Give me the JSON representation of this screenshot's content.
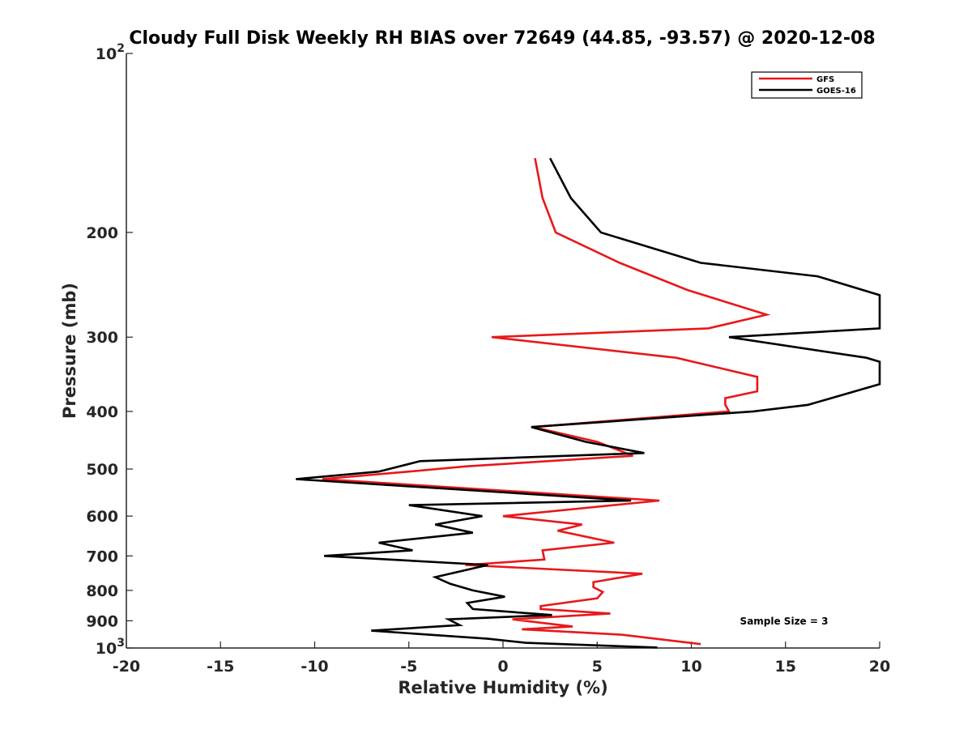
{
  "chart_data": {
    "type": "line",
    "title": "Cloudy Full Disk Weekly RH BIAS over 72649 (44.85, -93.57) @ 2020-12-08",
    "xlabel": "Relative Humidity (%)",
    "ylabel": "Pressure (mb)",
    "xlim": [
      -20,
      20
    ],
    "ylim": [
      100,
      1000
    ],
    "yscale": "log",
    "y_reversed": true,
    "grid": false,
    "legend_position": "top-right",
    "x_ticks": [
      "-20",
      "-15",
      "-10",
      "-5",
      "0",
      "5",
      "10",
      "15",
      "20"
    ],
    "y_ticks": [
      {
        "value": 100,
        "base": "10",
        "exp": "2"
      },
      {
        "value": 200,
        "label": "200"
      },
      {
        "value": 300,
        "label": "300"
      },
      {
        "value": 400,
        "label": "400"
      },
      {
        "value": 500,
        "label": "500"
      },
      {
        "value": 600,
        "label": "600"
      },
      {
        "value": 700,
        "label": "700"
      },
      {
        "value": 800,
        "label": "800"
      },
      {
        "value": 900,
        "label": "900"
      },
      {
        "value": 1000,
        "base": "10",
        "exp": "3"
      }
    ],
    "annotation": "Sample Size = 3",
    "series": [
      {
        "name": "GFS",
        "color": "#e8181a",
        "points": [
          [
            1.7,
            150
          ],
          [
            2.1,
            175
          ],
          [
            2.8,
            200
          ],
          [
            6.2,
            225
          ],
          [
            9.8,
            250
          ],
          [
            14.0,
            275
          ],
          [
            10.9,
            290
          ],
          [
            -0.6,
            300
          ],
          [
            9.2,
            325
          ],
          [
            13.5,
            350
          ],
          [
            13.5,
            370
          ],
          [
            11.8,
            380
          ],
          [
            11.8,
            390
          ],
          [
            12.0,
            400
          ],
          [
            1.6,
            425
          ],
          [
            5.0,
            450
          ],
          [
            6.9,
            475
          ],
          [
            -2.0,
            495
          ],
          [
            -5.0,
            505
          ],
          [
            -9.6,
            520
          ],
          [
            2.5,
            550
          ],
          [
            8.3,
            565
          ],
          [
            0.0,
            600
          ],
          [
            4.2,
            620
          ],
          [
            2.9,
            635
          ],
          [
            5.9,
            665
          ],
          [
            2.1,
            685
          ],
          [
            2.2,
            710
          ],
          [
            -2.0,
            725
          ],
          [
            7.4,
            750
          ],
          [
            4.8,
            775
          ],
          [
            4.8,
            790
          ],
          [
            5.3,
            805
          ],
          [
            5.0,
            825
          ],
          [
            2.0,
            850
          ],
          [
            2.0,
            860
          ],
          [
            5.7,
            875
          ],
          [
            0.5,
            895
          ],
          [
            3.7,
            920
          ],
          [
            1.0,
            930
          ],
          [
            6.3,
            950
          ],
          [
            10.5,
            985
          ]
        ]
      },
      {
        "name": "GOES-16",
        "color": "#000000",
        "points": [
          [
            2.5,
            150
          ],
          [
            3.6,
            175
          ],
          [
            5.2,
            200
          ],
          [
            10.5,
            225
          ],
          [
            16.7,
            237
          ],
          [
            20.0,
            255
          ],
          [
            20.0,
            290
          ],
          [
            12.0,
            300
          ],
          [
            19.3,
            325
          ],
          [
            20.0,
            330
          ],
          [
            20.0,
            360
          ],
          [
            16.2,
            390
          ],
          [
            13.3,
            400
          ],
          [
            1.5,
            425
          ],
          [
            4.4,
            450
          ],
          [
            7.5,
            470
          ],
          [
            -4.4,
            485
          ],
          [
            -6.6,
            505
          ],
          [
            -11.0,
            520
          ],
          [
            1.1,
            550
          ],
          [
            6.8,
            565
          ],
          [
            -5.0,
            575
          ],
          [
            -1.1,
            600
          ],
          [
            -3.6,
            620
          ],
          [
            -1.6,
            640
          ],
          [
            -6.6,
            665
          ],
          [
            -4.8,
            685
          ],
          [
            -9.5,
            700
          ],
          [
            -0.8,
            725
          ],
          [
            -3.6,
            760
          ],
          [
            -2.8,
            780
          ],
          [
            -1.6,
            800
          ],
          [
            0.1,
            820
          ],
          [
            -1.9,
            840
          ],
          [
            -1.6,
            860
          ],
          [
            2.6,
            880
          ],
          [
            -2.9,
            895
          ],
          [
            -2.3,
            915
          ],
          [
            -7.0,
            935
          ],
          [
            -0.8,
            965
          ],
          [
            1.2,
            980
          ],
          [
            8.2,
            998
          ]
        ]
      }
    ]
  }
}
